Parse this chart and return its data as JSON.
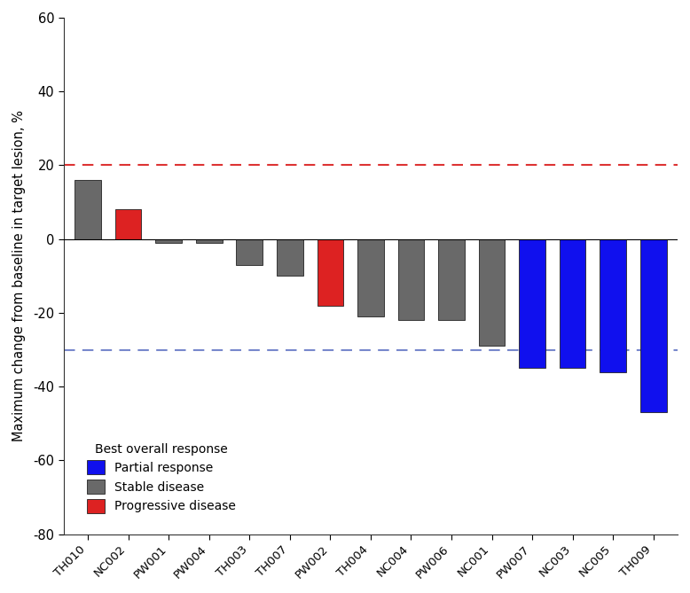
{
  "categories": [
    "TH010",
    "NC002",
    "PW001",
    "PW004",
    "TH003",
    "TH007",
    "PW002",
    "TH004",
    "NC004",
    "PW006",
    "NC001",
    "PW007",
    "NC003",
    "NC005",
    "TH009"
  ],
  "values": [
    16,
    8,
    -1,
    -1,
    -7,
    -10,
    -18,
    -21,
    -22,
    -22,
    -29,
    -35,
    -35,
    -36,
    -47
  ],
  "colors": [
    "#696969",
    "#dd2222",
    "#696969",
    "#696969",
    "#696969",
    "#696969",
    "#dd2222",
    "#696969",
    "#696969",
    "#696969",
    "#696969",
    "#1010ee",
    "#1010ee",
    "#1010ee",
    "#1010ee"
  ],
  "ylabel": "Maximum change from baseline in target lesion, %",
  "ylim": [
    -80,
    60
  ],
  "yticks": [
    -80,
    -60,
    -40,
    -20,
    0,
    20,
    40,
    60
  ],
  "red_line_y": 20,
  "blue_line_y": -30,
  "red_line_color": "#dd3333",
  "blue_line_color": "#7788cc",
  "legend_title": "Best overall response",
  "legend_entries": [
    {
      "label": "Partial response",
      "color": "#1010ee"
    },
    {
      "label": "Stable disease",
      "color": "#696969"
    },
    {
      "label": "Progressive disease",
      "color": "#dd2222"
    }
  ],
  "background_color": "#ffffff",
  "bar_edgecolor": "#222222",
  "bar_linewidth": 0.6,
  "figwidth": 7.78,
  "figheight": 6.69,
  "dpi": 100
}
